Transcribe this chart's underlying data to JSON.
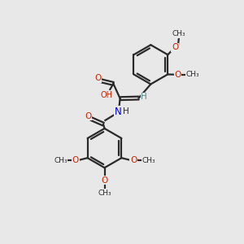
{
  "bg_color": "#e8e8e8",
  "bond_color": "#2a2a2a",
  "oxygen_color": "#cc2200",
  "nitrogen_color": "#0000cc",
  "carbon_color": "#2a2a2a",
  "h_color": "#4a8a8a",
  "line_width": 1.6,
  "figsize": [
    3.0,
    3.0
  ],
  "dpi": 100,
  "xlim": [
    0,
    10
  ],
  "ylim": [
    0,
    10
  ]
}
